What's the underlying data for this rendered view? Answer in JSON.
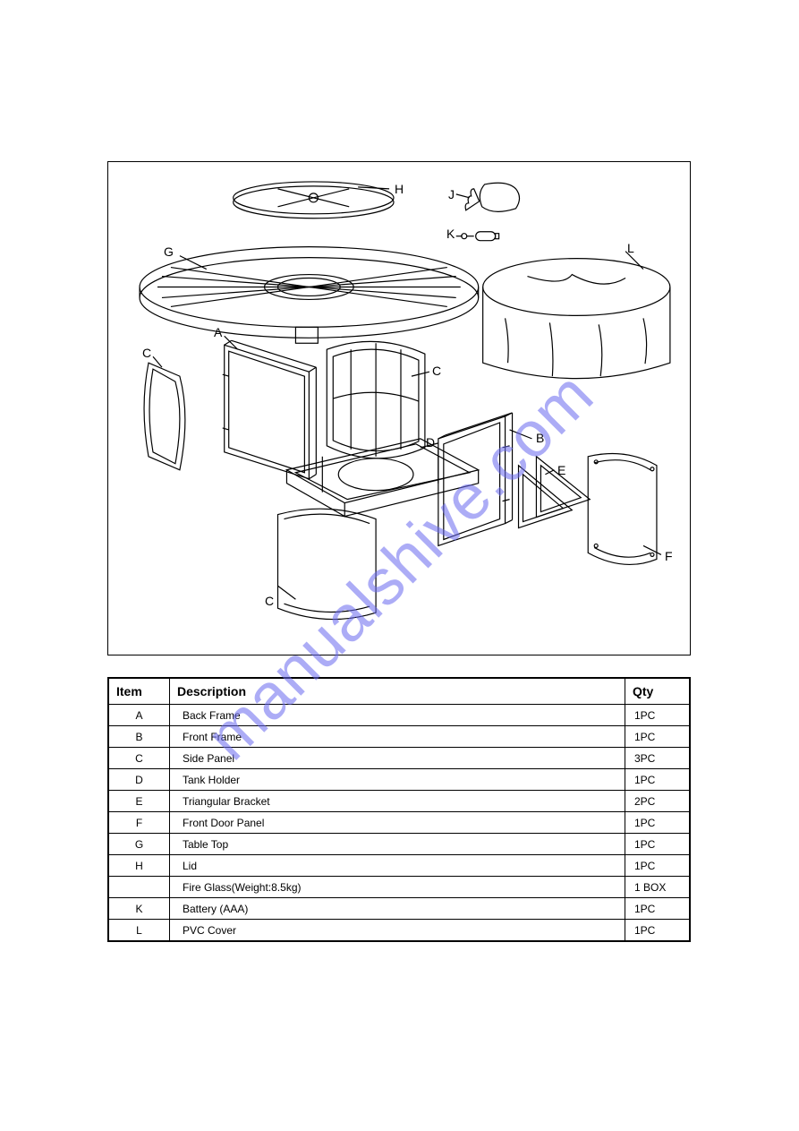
{
  "watermark": "manualshive.com",
  "diagram": {
    "labels": {
      "H": "H",
      "J": "J",
      "K": "K",
      "L": "L",
      "G": "G",
      "A": "A",
      "C1": "C",
      "C2": "C",
      "C3": "C",
      "D": "D",
      "B": "B",
      "E": "E",
      "F": "F"
    },
    "stroke": "#000000",
    "fill": "#ffffff",
    "line_width": 1.2
  },
  "table": {
    "headers": {
      "item": "Item",
      "description": "Description",
      "qty": "Qty"
    },
    "rows": [
      {
        "item": "A",
        "desc": "Back Frame",
        "qty": "1PC"
      },
      {
        "item": "B",
        "desc": "Front Frame",
        "qty": "1PC"
      },
      {
        "item": "C",
        "desc": "Side Panel",
        "qty": "3PC"
      },
      {
        "item": "D",
        "desc": "Tank Holder",
        "qty": "1PC"
      },
      {
        "item": "E",
        "desc": "Triangular Bracket",
        "qty": "2PC"
      },
      {
        "item": "F",
        "desc": "Front Door Panel",
        "qty": "1PC"
      },
      {
        "item": "G",
        "desc": "Table Top",
        "qty": "1PC"
      },
      {
        "item": "H",
        "desc": "Lid",
        "qty": "1PC"
      },
      {
        "item": "",
        "desc": "Fire  Glass(Weight:8.5kg)",
        "qty": "1 BOX"
      },
      {
        "item": "K",
        "desc": "Battery (AAA)",
        "qty": "1PC"
      },
      {
        "item": "L",
        "desc": "PVC  Cover",
        "qty": "1PC"
      }
    ]
  }
}
